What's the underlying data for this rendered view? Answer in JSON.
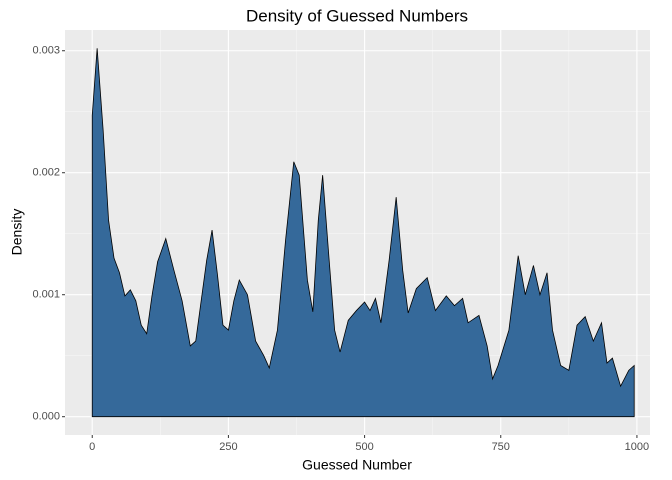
{
  "chart_data": {
    "type": "area",
    "title": "Density of Guessed Numbers",
    "x_label": "Guessed Number",
    "y_label": "Density",
    "x": [
      0,
      9,
      20,
      30,
      40,
      50,
      60,
      70,
      80,
      90,
      100,
      110,
      120,
      135,
      150,
      165,
      180,
      190,
      200,
      210,
      220,
      230,
      240,
      250,
      260,
      270,
      285,
      300,
      315,
      325,
      340,
      355,
      370,
      380,
      395,
      405,
      415,
      423,
      435,
      445,
      455,
      470,
      485,
      500,
      510,
      520,
      530,
      545,
      558,
      570,
      580,
      595,
      615,
      630,
      650,
      665,
      680,
      690,
      710,
      725,
      735,
      745,
      765,
      782,
      795,
      810,
      822,
      835,
      845,
      860,
      875,
      890,
      905,
      920,
      935,
      945,
      955,
      970,
      985,
      995
    ],
    "y": [
      0.00247,
      0.00302,
      0.00235,
      0.00161,
      0.0013,
      0.00118,
      0.00099,
      0.00104,
      0.00095,
      0.00075,
      0.00068,
      0.001,
      0.00127,
      0.00146,
      0.0012,
      0.00095,
      0.00058,
      0.00062,
      0.00095,
      0.00128,
      0.00153,
      0.00116,
      0.00075,
      0.00071,
      0.00095,
      0.00112,
      0.001,
      0.00062,
      0.0005,
      0.0004,
      0.00071,
      0.00145,
      0.00209,
      0.00198,
      0.00112,
      0.00086,
      0.00161,
      0.00198,
      0.00128,
      0.00071,
      0.00053,
      0.00079,
      0.00087,
      0.00094,
      0.00087,
      0.00097,
      0.00077,
      0.00128,
      0.0018,
      0.0012,
      0.00085,
      0.00105,
      0.00114,
      0.00087,
      0.00099,
      0.00091,
      0.00097,
      0.00077,
      0.00083,
      0.00058,
      0.00031,
      0.00042,
      0.00071,
      0.00132,
      0.001,
      0.00124,
      0.001,
      0.00118,
      0.00071,
      0.00042,
      0.00038,
      0.00075,
      0.00082,
      0.00062,
      0.00077,
      0.00044,
      0.00048,
      0.00025,
      0.00038,
      0.00042
    ],
    "color": "#35699a",
    "xlim": [
      -50,
      1024
    ],
    "ylim": [
      -0.00015,
      0.00317
    ],
    "xticks": [
      0,
      250,
      500,
      750,
      1000
    ],
    "yticks": [
      {
        "value": 0,
        "label": "0.000"
      },
      0.001,
      0.002,
      0.003
    ],
    "grid": true
  }
}
